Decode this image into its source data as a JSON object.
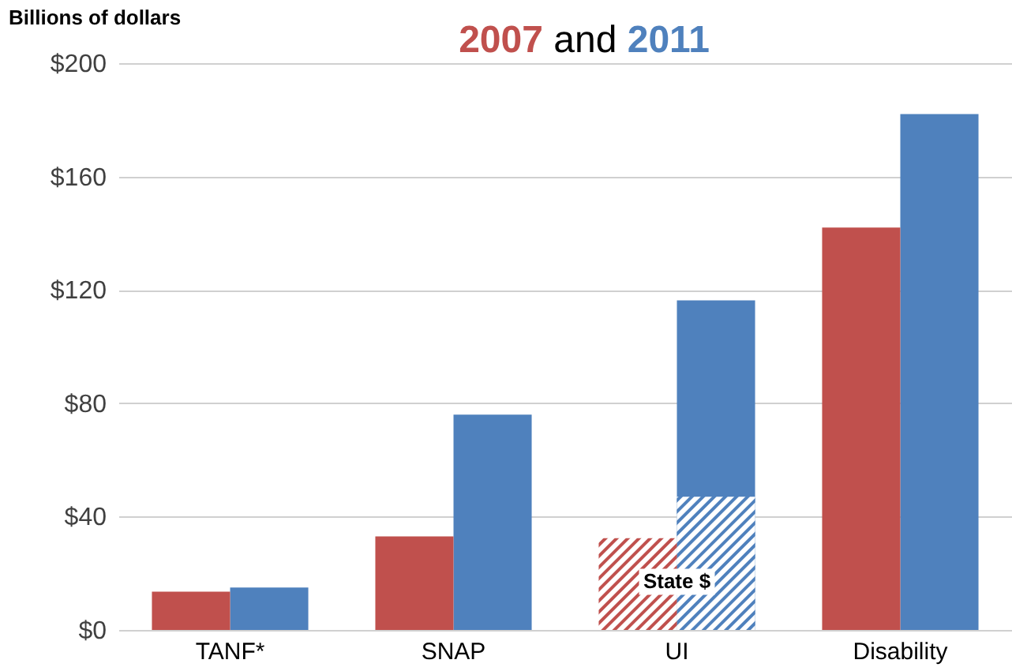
{
  "chart_data": {
    "type": "bar",
    "title": "2007 and 2011",
    "ylabel": "Billions of dollars",
    "categories": [
      "TANF*",
      "SNAP",
      "UI",
      "Disability"
    ],
    "series": [
      {
        "color": "#c0504d",
        "values": [
          null,
          null,
          32.4,
          null
        ]
      },
      {
        "color": "#4f81bd",
        "values": [
          null,
          null,
          47,
          null
        ]
      },
      {
        "color": "#c0504d",
        "values": [
          13.5,
          33,
          null,
          142
        ]
      },
      {
        "color": "#4f81bd",
        "values": [
          15,
          76,
          116.3,
          182
        ]
      }
    ],
    "ylim": [
      0,
      200
    ],
    "yticks": [
      {
        "value": 0,
        "label": "$0"
      },
      {
        "value": 40,
        "label": "$40"
      },
      {
        "value": 80,
        "label": "$80"
      },
      {
        "value": 120,
        "label": "$120"
      },
      {
        "value": 160,
        "label": "$160"
      },
      {
        "value": 200,
        "label": "$200"
      }
    ],
    "annotations": [
      {
        "text": "State $",
        "x": "UI",
        "y": 17
      }
    ],
    "grid": "y",
    "legend": false
  }
}
